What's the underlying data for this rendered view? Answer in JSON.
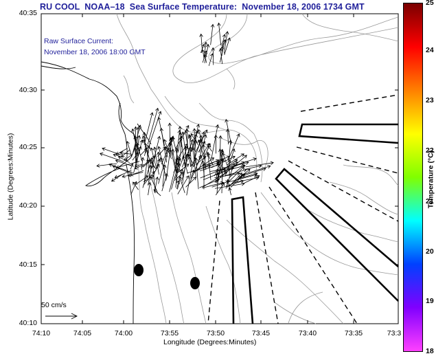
{
  "title": "RU COOL  NOAA–18  Sea Surface Temperature:  November 18, 2006 1734 GMT",
  "current_label": "Raw Surface Current:",
  "current_time": "November 18, 2006 18:00 GMT",
  "scale_label": "50 cm/s",
  "xlabel": "Longitude (Degrees:Minutes)",
  "ylabel": "Latitude (Degrees:Minutes)",
  "colorbar": {
    "label": "Temperature (°C)",
    "ticks": [
      "25",
      "24",
      "23",
      "22",
      "21",
      "20",
      "19",
      "18"
    ],
    "colors": [
      "#7a0000",
      "#ff0000",
      "#ff8000",
      "#ffff00",
      "#80ff00",
      "#00ffff",
      "#0040ff",
      "#8000ff",
      "#ff40ff"
    ]
  },
  "axes": {
    "x_ticks": [
      "74:10",
      "74:05",
      "74:00",
      "73:55",
      "73:50",
      "73:45",
      "73:40",
      "73:35",
      "73:3"
    ],
    "y_ticks": [
      "40:35",
      "40:30",
      "40:25",
      "40:20",
      "40:15",
      "40:10"
    ]
  },
  "map_features": [
    "coastline",
    "bathymetry-contours",
    "surface-current-vectors",
    "shipping-lanes",
    "buoys"
  ]
}
